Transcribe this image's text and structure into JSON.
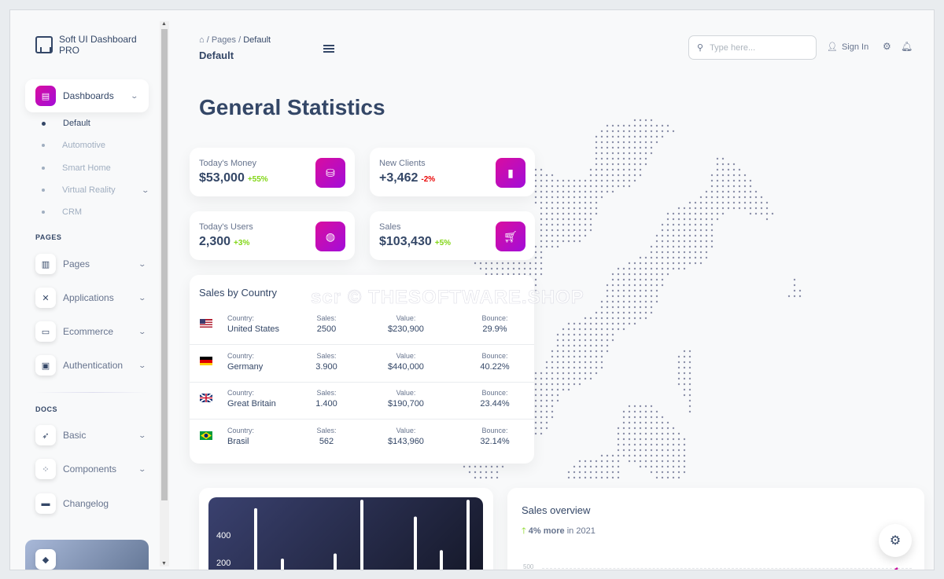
{
  "brand": {
    "name": "Soft UI Dashboard PRO"
  },
  "sidebar": {
    "dashboards": {
      "label": "Dashboards",
      "expanded": true
    },
    "dashboards_sub": [
      {
        "label": "Default",
        "active": true
      },
      {
        "label": "Automotive"
      },
      {
        "label": "Smart Home"
      },
      {
        "label": "Virtual Reality",
        "has_chevron": true
      },
      {
        "label": "CRM"
      }
    ],
    "pages_section": "PAGES",
    "pages_items": [
      {
        "label": "Pages",
        "icon": "chart-icon"
      },
      {
        "label": "Applications",
        "icon": "tools-icon"
      },
      {
        "label": "Ecommerce",
        "icon": "basket-icon"
      },
      {
        "label": "Authentication",
        "icon": "document-icon"
      }
    ],
    "docs_section": "DOCS",
    "docs_items": [
      {
        "label": "Basic",
        "icon": "rocket-icon",
        "has_chevron": true
      },
      {
        "label": "Components",
        "icon": "components-icon",
        "has_chevron": true
      },
      {
        "label": "Changelog",
        "icon": "card-icon",
        "has_chevron": false
      }
    ]
  },
  "header": {
    "breadcrumb": {
      "parent": "Pages",
      "current": "Default",
      "sep": "/"
    },
    "page_title": "Default",
    "search_placeholder": "Type here...",
    "sign_in": "Sign In"
  },
  "main": {
    "heading": "General Statistics",
    "stats": [
      {
        "title": "Today's Money",
        "value": "$53,000",
        "change": "+55%",
        "trend": "pos",
        "icon": "coins-icon"
      },
      {
        "title": "New Clients",
        "value": "+3,462",
        "change": "-2%",
        "trend": "neg",
        "icon": "badge-icon"
      },
      {
        "title": "Today's Users",
        "value": "2,300",
        "change": "+3%",
        "trend": "pos",
        "icon": "globe-icon"
      },
      {
        "title": "Sales",
        "value": "$103,430",
        "change": "+5%",
        "trend": "pos",
        "icon": "cart-icon"
      }
    ],
    "sales_by_country": {
      "title": "Sales by Country",
      "labels": {
        "country": "Country:",
        "sales": "Sales:",
        "value": "Value:",
        "bounce": "Bounce:"
      },
      "rows": [
        {
          "flag": "us",
          "country": "United States",
          "sales": "2500",
          "value": "$230,900",
          "bounce": "29.9%"
        },
        {
          "flag": "de",
          "country": "Germany",
          "sales": "3.900",
          "value": "$440,000",
          "bounce": "40.22%"
        },
        {
          "flag": "gb",
          "country": "Great Britain",
          "sales": "1.400",
          "value": "$190,700",
          "bounce": "23.44%"
        },
        {
          "flag": "br",
          "country": "Brasil",
          "sales": "562",
          "value": "$143,960",
          "bounce": "32.14%"
        }
      ]
    },
    "sales_overview": {
      "title": "Sales overview",
      "change": "4% more",
      "period": "in 2021",
      "y_tick": "500"
    },
    "watermark": "scr © THESOFTWARE.SHOP"
  },
  "chart_data": {
    "type": "bar",
    "y_ticks": [
      "400",
      "200"
    ],
    "values": [
      450,
      150,
      180,
      500,
      400,
      200,
      500
    ],
    "ylim": [
      0,
      500
    ]
  },
  "colors": {
    "accent": "#cb0c9f",
    "text": "#344767",
    "positive": "#82d616",
    "negative": "#ea0606"
  }
}
